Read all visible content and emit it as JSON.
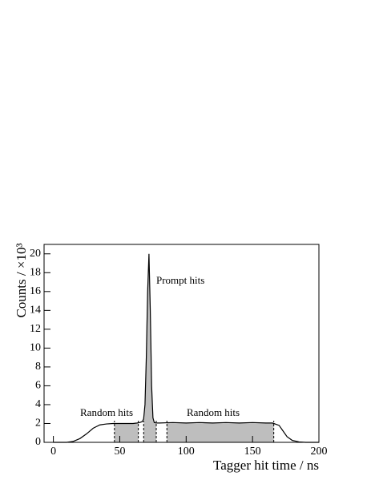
{
  "chart_data": {
    "type": "line",
    "xlabel": "Tagger hit time / ns",
    "ylabel": "Counts / ×10³",
    "x": [
      0,
      5,
      10,
      15,
      20,
      25,
      30,
      35,
      40,
      45,
      50,
      55,
      60,
      63,
      65,
      67,
      68,
      69,
      70,
      71,
      72,
      73,
      74,
      75,
      76,
      78,
      80,
      90,
      100,
      110,
      120,
      130,
      140,
      150,
      160,
      165,
      170,
      173,
      176,
      180,
      185,
      190,
      195,
      200
    ],
    "values": [
      0,
      0,
      0,
      0.1,
      0.4,
      0.9,
      1.5,
      1.85,
      1.95,
      2,
      2,
      2,
      2,
      2.05,
      2.1,
      2.2,
      2.5,
      4,
      9,
      16,
      20,
      14,
      6,
      2.6,
      2.1,
      2.05,
      2.05,
      2.1,
      2.05,
      2.1,
      2.05,
      2.1,
      2.05,
      2.1,
      2.05,
      2.05,
      1.8,
      1.2,
      0.6,
      0.2,
      0.05,
      0,
      0,
      0
    ],
    "color": "#000000",
    "window_color": "#bebebe",
    "windows": [
      [
        46,
        64
      ],
      [
        68,
        77.5
      ],
      [
        85.5,
        166
      ]
    ],
    "annotations": [
      "Random hits",
      "Prompt hits",
      "Random hits"
    ],
    "xlim": [
      -7,
      200
    ],
    "xticks": [
      0,
      50,
      100,
      150,
      200
    ],
    "ylim": [
      0,
      21
    ],
    "yticks": [
      0,
      2,
      4,
      6,
      8,
      10,
      12,
      14,
      16,
      18,
      20
    ]
  }
}
